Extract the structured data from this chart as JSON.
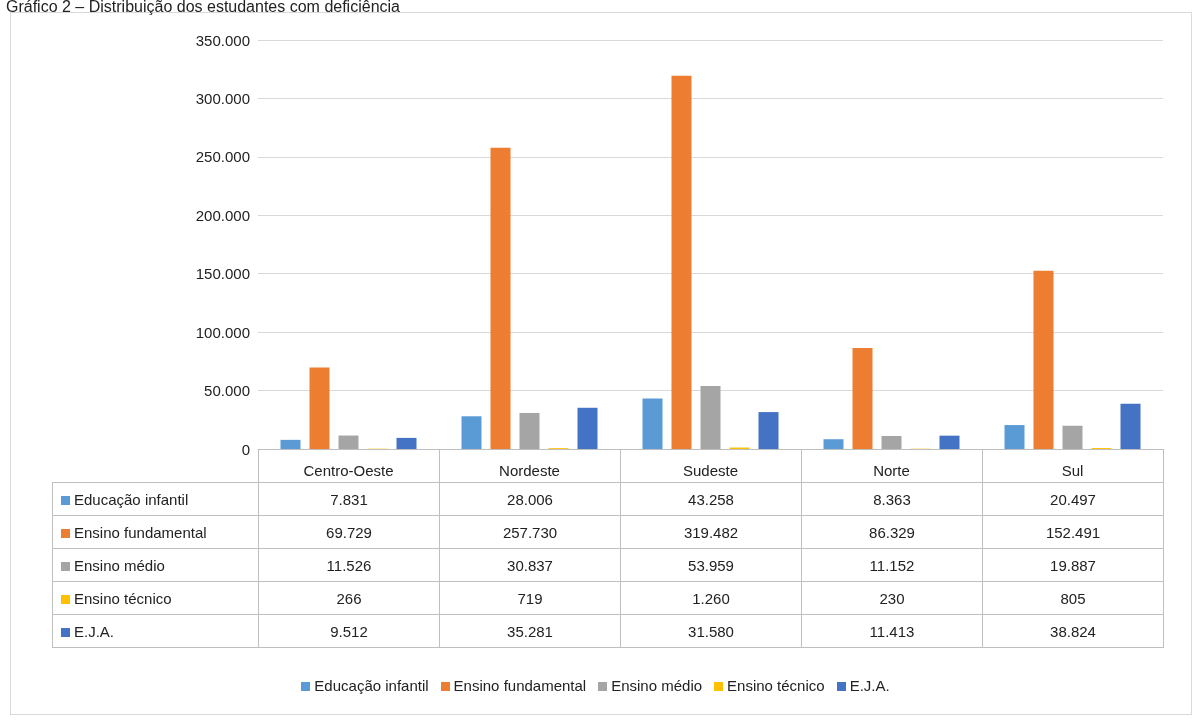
{
  "chart_data": {
    "type": "bar",
    "title": "Gráfico 2 – Distribuição dos estudantes com deficiência",
    "categories": [
      "Centro-Oeste",
      "Nordeste",
      "Sudeste",
      "Norte",
      "Sul"
    ],
    "series": [
      {
        "name": "Educação infantil",
        "color": "#5b9bd5",
        "values": [
          7831,
          28006,
          43258,
          8363,
          20497
        ],
        "value_labels": [
          "7.831",
          "28.006",
          "43.258",
          "8.363",
          "20.497"
        ]
      },
      {
        "name": "Ensino fundamental",
        "color": "#ed7d31",
        "values": [
          69729,
          257730,
          319482,
          86329,
          152491
        ],
        "value_labels": [
          "69.729",
          "257.730",
          "319.482",
          "86.329",
          "152.491"
        ]
      },
      {
        "name": "Ensino médio",
        "color": "#a5a5a5",
        "values": [
          11526,
          30837,
          53959,
          11152,
          19887
        ],
        "value_labels": [
          "11.526",
          "30.837",
          "53.959",
          "11.152",
          "19.887"
        ]
      },
      {
        "name": "Ensino técnico",
        "color": "#ffc000",
        "values": [
          266,
          719,
          1260,
          230,
          805
        ],
        "value_labels": [
          "266",
          "719",
          "1.260",
          "230",
          "805"
        ]
      },
      {
        "name": "E.J.A.",
        "color": "#4472c4",
        "values": [
          9512,
          35281,
          31580,
          11413,
          38824
        ],
        "value_labels": [
          "9.512",
          "35.281",
          "31.580",
          "11.413",
          "38.824"
        ]
      }
    ],
    "ylim": [
      0,
      350000
    ],
    "yticks": [
      0,
      {
        "value": 50000,
        "label": "50.000"
      },
      {
        "value": 100000,
        "label": "100.000"
      },
      {
        "value": 150000,
        "label": "150.000"
      },
      {
        "value": 200000,
        "label": "200.000"
      },
      {
        "value": 250000,
        "label": "250.000"
      },
      {
        "value": 300000,
        "label": "300.000"
      },
      {
        "value": 350000,
        "label": "350.000"
      }
    ],
    "grid": "y",
    "legend": "bottom"
  }
}
